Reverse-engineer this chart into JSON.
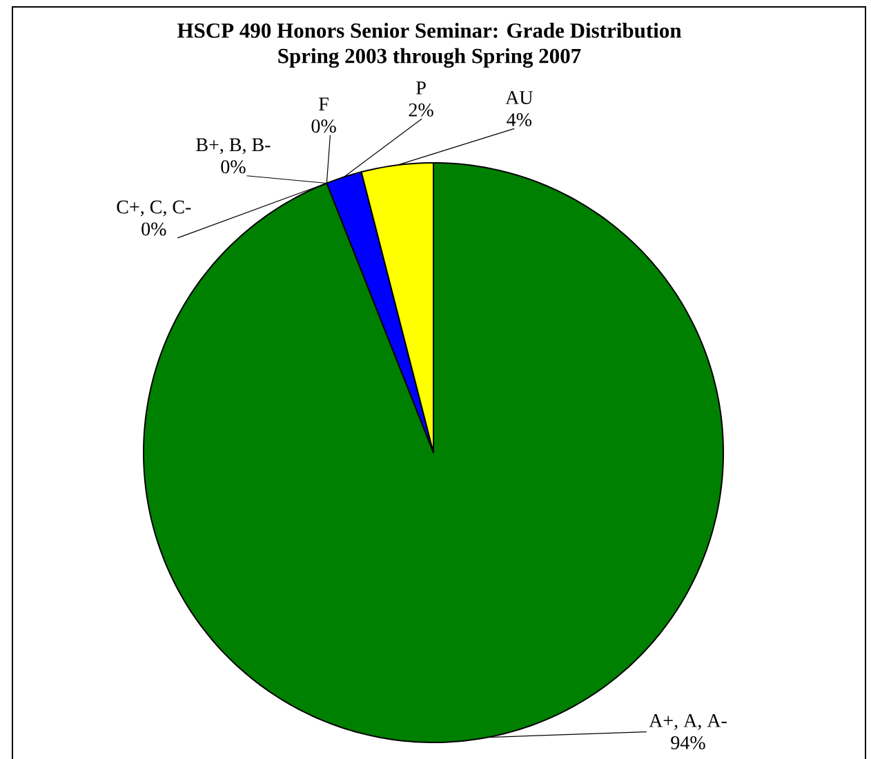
{
  "chart_data": {
    "type": "pie",
    "title": "HSCP 490 Honors Senior Seminar: Grade Distribution",
    "subtitle": "Spring 2003 through Spring 2007",
    "categories": [
      "A+, A, A-",
      "C+, C, C-",
      "B+, B, B-",
      "F",
      "P",
      "AU"
    ],
    "values": [
      94,
      0,
      0,
      0,
      2,
      4
    ],
    "colors": [
      "#008000",
      null,
      null,
      null,
      "#0000ff",
      "#ffff00"
    ],
    "value_labels": [
      "94%",
      "0%",
      "0%",
      "0%",
      "2%",
      "4%"
    ]
  }
}
